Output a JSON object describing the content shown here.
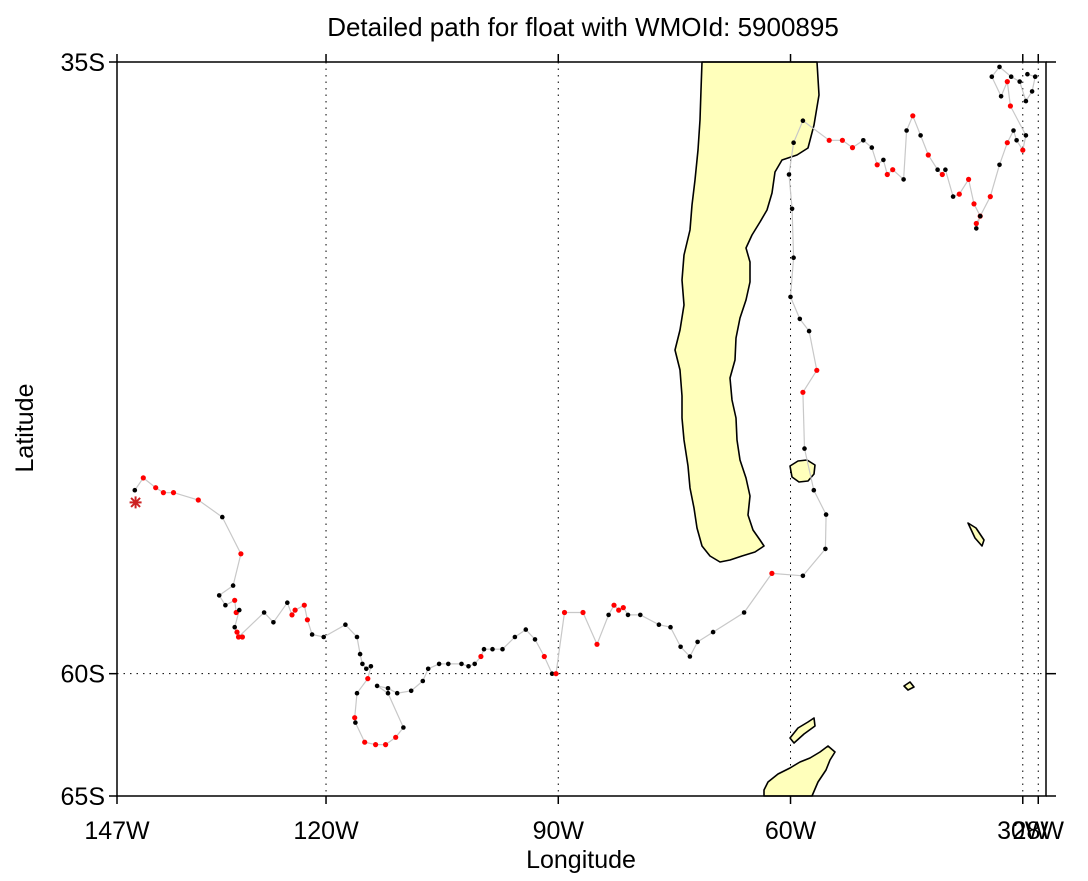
{
  "chart_data": {
    "type": "scatter",
    "title": "Detailed path for float with WMOId: 5900895",
    "xlabel": "Longitude",
    "ylabel": "Latitude",
    "xlim": [
      -147,
      -27
    ],
    "ylim": [
      -65,
      -35
    ],
    "x_ticks": [
      {
        "value": -147,
        "label": "147W"
      },
      {
        "value": -120,
        "label": "120W"
      },
      {
        "value": -90,
        "label": "90W"
      },
      {
        "value": -60,
        "label": "60W"
      },
      {
        "value": -30,
        "label": "30W"
      },
      {
        "value": -28,
        "label": "28W"
      }
    ],
    "y_ticks": [
      {
        "value": -35,
        "label": "35S"
      },
      {
        "value": -60,
        "label": "60S"
      },
      {
        "value": -65,
        "label": "65S"
      }
    ],
    "grid": true,
    "colors": {
      "land": "#ffffbb",
      "coast": "#000000",
      "track": "#c8c8c8",
      "position_a": "#000000",
      "position_b": "#ff0000",
      "deployment": "#cc2222"
    },
    "deployment": {
      "lon": -144.6,
      "lat": -53.0,
      "marker": "star"
    },
    "track": [
      [
        -144.7,
        -52.5,
        "black"
      ],
      [
        -143.6,
        -52.0,
        "red"
      ],
      [
        -142.0,
        -52.4,
        "red"
      ],
      [
        -141.0,
        -52.6,
        "red"
      ],
      [
        -139.7,
        -52.6,
        "red"
      ],
      [
        -136.5,
        -52.9,
        "red"
      ],
      [
        -133.4,
        -53.6,
        "black"
      ],
      [
        -131.0,
        -55.1,
        "red"
      ],
      [
        -132.0,
        -56.4,
        "black"
      ],
      [
        -133.8,
        -56.8,
        "black"
      ],
      [
        -133.0,
        -57.2,
        "black"
      ],
      [
        -131.8,
        -57.0,
        "red"
      ],
      [
        -131.6,
        -57.5,
        "red"
      ],
      [
        -131.2,
        -57.4,
        "black"
      ],
      [
        -131.8,
        -58.1,
        "black"
      ],
      [
        -131.5,
        -58.3,
        "red"
      ],
      [
        -130.8,
        -58.5,
        "red"
      ],
      [
        -131.3,
        -58.5,
        "red"
      ],
      [
        -128.0,
        -57.5,
        "black"
      ],
      [
        -126.8,
        -57.9,
        "black"
      ],
      [
        -125.0,
        -57.1,
        "black"
      ],
      [
        -124.4,
        -57.6,
        "red"
      ],
      [
        -124.0,
        -57.4,
        "red"
      ],
      [
        -122.8,
        -57.2,
        "red"
      ],
      [
        -122.4,
        -57.8,
        "red"
      ],
      [
        -121.8,
        -58.4,
        "black"
      ],
      [
        -120.3,
        -58.5,
        "black"
      ],
      [
        -117.5,
        -58.0,
        "black"
      ],
      [
        -116.0,
        -58.5,
        "black"
      ],
      [
        -115.6,
        -59.2,
        "black"
      ],
      [
        -115.3,
        -59.6,
        "black"
      ],
      [
        -114.8,
        -59.8,
        "black"
      ],
      [
        -114.2,
        -59.7,
        "black"
      ],
      [
        -114.6,
        -60.2,
        "red"
      ],
      [
        -116.0,
        -60.8,
        "black"
      ],
      [
        -116.3,
        -61.8,
        "red"
      ],
      [
        -116.2,
        -62.0,
        "black"
      ],
      [
        -115.0,
        -62.8,
        "red"
      ],
      [
        -113.6,
        -62.9,
        "red"
      ],
      [
        -112.3,
        -62.9,
        "red"
      ],
      [
        -111.0,
        -62.6,
        "red"
      ],
      [
        -110.0,
        -62.2,
        "black"
      ],
      [
        -112.0,
        -60.8,
        "black"
      ],
      [
        -113.4,
        -60.5,
        "black"
      ],
      [
        -112.0,
        -60.6,
        "black"
      ],
      [
        -110.8,
        -60.8,
        "black"
      ],
      [
        -109.0,
        -60.7,
        "black"
      ],
      [
        -107.5,
        -60.3,
        "black"
      ],
      [
        -106.8,
        -59.8,
        "black"
      ],
      [
        -105.4,
        -59.6,
        "black"
      ],
      [
        -104.2,
        -59.6,
        "black"
      ],
      [
        -102.5,
        -59.6,
        "black"
      ],
      [
        -101.6,
        -59.7,
        "black"
      ],
      [
        -100.8,
        -59.6,
        "black"
      ],
      [
        -100.0,
        -59.3,
        "red"
      ],
      [
        -99.6,
        -59.0,
        "black"
      ],
      [
        -98.5,
        -59.0,
        "black"
      ],
      [
        -97.2,
        -59.0,
        "black"
      ],
      [
        -95.6,
        -58.5,
        "black"
      ],
      [
        -94.2,
        -58.2,
        "black"
      ],
      [
        -93.0,
        -58.6,
        "black"
      ],
      [
        -91.8,
        -59.3,
        "red"
      ],
      [
        -90.8,
        -60.0,
        "black"
      ],
      [
        -90.3,
        -60.0,
        "red"
      ],
      [
        -89.2,
        -57.5,
        "red"
      ],
      [
        -86.8,
        -57.5,
        "red"
      ],
      [
        -85.0,
        -58.8,
        "red"
      ],
      [
        -83.5,
        -57.6,
        "black"
      ],
      [
        -82.8,
        -57.2,
        "red"
      ],
      [
        -82.2,
        -57.4,
        "red"
      ],
      [
        -81.6,
        -57.3,
        "red"
      ],
      [
        -81.0,
        -57.6,
        "black"
      ],
      [
        -79.4,
        -57.6,
        "black"
      ],
      [
        -77.0,
        -58.0,
        "black"
      ],
      [
        -75.5,
        -58.1,
        "black"
      ],
      [
        -74.2,
        -58.9,
        "black"
      ],
      [
        -73.0,
        -59.3,
        "black"
      ],
      [
        -72.0,
        -58.7,
        "black"
      ],
      [
        -70.0,
        -58.3,
        "black"
      ],
      [
        -66.0,
        -57.5,
        "black"
      ],
      [
        -62.4,
        -55.9,
        "red"
      ],
      [
        -58.4,
        -56.0,
        "black"
      ],
      [
        -55.5,
        -54.9,
        "black"
      ],
      [
        -55.4,
        -53.5,
        "black"
      ],
      [
        -57.0,
        -52.5,
        "black"
      ],
      [
        -58.2,
        -50.8,
        "black"
      ],
      [
        -58.4,
        -48.5,
        "red"
      ],
      [
        -56.6,
        -47.6,
        "red"
      ],
      [
        -57.6,
        -46.0,
        "black"
      ],
      [
        -58.8,
        -45.5,
        "black"
      ],
      [
        -60.0,
        -44.6,
        "black"
      ],
      [
        -59.6,
        -43.0,
        "black"
      ],
      [
        -59.8,
        -41.0,
        "black"
      ],
      [
        -60.2,
        -39.6,
        "black"
      ],
      [
        -59.6,
        -38.3,
        "black"
      ],
      [
        -58.4,
        -37.4,
        "black"
      ],
      [
        -55.0,
        -38.2,
        "red"
      ],
      [
        -53.3,
        -38.2,
        "red"
      ],
      [
        -52.0,
        -38.5,
        "red"
      ],
      [
        -50.6,
        -38.2,
        "black"
      ],
      [
        -49.5,
        -38.5,
        "black"
      ],
      [
        -48.8,
        -39.2,
        "red"
      ],
      [
        -48.0,
        -39.0,
        "black"
      ],
      [
        -47.5,
        -39.6,
        "red"
      ],
      [
        -46.8,
        -39.4,
        "red"
      ],
      [
        -45.4,
        -39.8,
        "black"
      ],
      [
        -45.0,
        -37.8,
        "black"
      ],
      [
        -44.2,
        -37.2,
        "red"
      ],
      [
        -43.2,
        -38.0,
        "black"
      ],
      [
        -42.2,
        -38.8,
        "red"
      ],
      [
        -41.0,
        -39.4,
        "black"
      ],
      [
        -40.4,
        -39.6,
        "red"
      ],
      [
        -40.0,
        -39.4,
        "black"
      ],
      [
        -39.0,
        -40.5,
        "black"
      ],
      [
        -38.2,
        -40.4,
        "red"
      ],
      [
        -37.0,
        -39.8,
        "red"
      ],
      [
        -36.3,
        -40.8,
        "red"
      ],
      [
        -35.5,
        -41.3,
        "red"
      ],
      [
        -36.0,
        -41.6,
        "red"
      ],
      [
        -36.0,
        -41.8,
        "black"
      ],
      [
        -35.5,
        -41.3,
        "black"
      ],
      [
        -34.2,
        -40.5,
        "red"
      ],
      [
        -33.0,
        -39.2,
        "black"
      ],
      [
        -32.0,
        -38.3,
        "red"
      ],
      [
        -31.2,
        -37.8,
        "black"
      ],
      [
        -30.8,
        -38.2,
        "black"
      ],
      [
        -30.0,
        -38.6,
        "red"
      ],
      [
        -29.6,
        -38.0,
        "black"
      ],
      [
        -31.6,
        -36.8,
        "red"
      ],
      [
        -32.0,
        -35.8,
        "red"
      ],
      [
        -32.8,
        -36.4,
        "black"
      ],
      [
        -34.0,
        -35.6,
        "black"
      ],
      [
        -33.0,
        -35.2,
        "black"
      ],
      [
        -31.5,
        -35.6,
        "black"
      ],
      [
        -30.4,
        -35.8,
        "black"
      ],
      [
        -29.6,
        -36.6,
        "black"
      ],
      [
        -28.8,
        -36.2,
        "black"
      ],
      [
        -28.4,
        -35.6,
        "black"
      ],
      [
        -29.4,
        -35.5,
        "black"
      ]
    ]
  }
}
